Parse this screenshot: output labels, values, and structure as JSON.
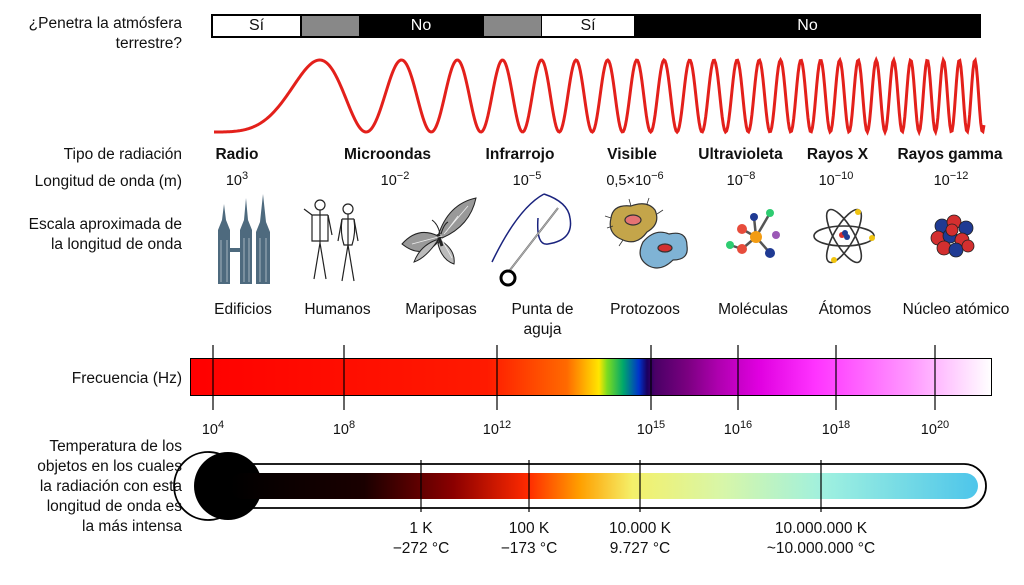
{
  "atmosphere": {
    "question_line1": "¿Penetra la atmósfera",
    "question_line2": "terrestre?",
    "segments": [
      "Sí",
      "No",
      "Sí",
      "No"
    ]
  },
  "row_labels": {
    "type": "Tipo de radiación",
    "wavelength": "Longitud de onda (m)",
    "scale_line1": "Escala aproximada de",
    "scale_line2": "la longitud de onda",
    "frequency": "Frecuencia (Hz)",
    "temp_line1": "Temperatura de los",
    "temp_line2": "objetos en los cuales",
    "temp_line3": "la radiación con esta",
    "temp_line4": "longitud de onda es",
    "temp_line5": "la más intensa"
  },
  "radiation_types": [
    {
      "name": "Radio",
      "wl_base": "10",
      "wl_exp": "3",
      "object": "Edificios",
      "object2": "",
      "icon": "buildings-icon"
    },
    {
      "name": "Microondas",
      "wl_base": "10",
      "wl_exp": "−2",
      "object": "Humanos",
      "object2": "",
      "icon": "humans-icon"
    },
    {
      "name": "Infrarrojo",
      "wl_base": "10",
      "wl_exp": "−5",
      "object": "Mariposas",
      "object2": "",
      "icon": "butterfly-icon"
    },
    {
      "name": "Visible",
      "wl_base": "0,5×10",
      "wl_exp": "−6",
      "object": "Punta de",
      "object2": "aguja",
      "icon": "needle-icon"
    },
    {
      "name": "Ultravioleta",
      "wl_base": "10",
      "wl_exp": "−8",
      "object": "Protozoos",
      "object2": "",
      "icon": "protozoa-icon"
    },
    {
      "name": "Rayos X",
      "wl_base": "10",
      "wl_exp": "−10",
      "object": "Moléculas",
      "object2": "",
      "icon": "molecule-icon"
    },
    {
      "name": "Rayos gamma",
      "wl_base": "10",
      "wl_exp": "−12",
      "object": "Átomos",
      "object2": "",
      "icon": "atom-icon"
    },
    {
      "name": "",
      "wl_base": "",
      "wl_exp": "",
      "object": "Núcleo atómico",
      "object2": "",
      "icon": "nucleus-icon"
    }
  ],
  "frequency_ticks": [
    {
      "base": "10",
      "exp": "4"
    },
    {
      "base": "10",
      "exp": "8"
    },
    {
      "base": "10",
      "exp": "12"
    },
    {
      "base": "10",
      "exp": "15"
    },
    {
      "base": "10",
      "exp": "16"
    },
    {
      "base": "10",
      "exp": "18"
    },
    {
      "base": "10",
      "exp": "20"
    }
  ],
  "temperature_ticks": [
    {
      "k": "1 K",
      "c": "−272 °C"
    },
    {
      "k": "100 K",
      "c": "−173 °C"
    },
    {
      "k": "10.000 K",
      "c": "9.727 °C"
    },
    {
      "k": "10.000.000 K",
      "c": "~10.000.000 °C"
    }
  ],
  "colors": {
    "wave": "#e3201b",
    "black": "#000000",
    "grey": "#888888",
    "building": "#4e6a7e"
  }
}
